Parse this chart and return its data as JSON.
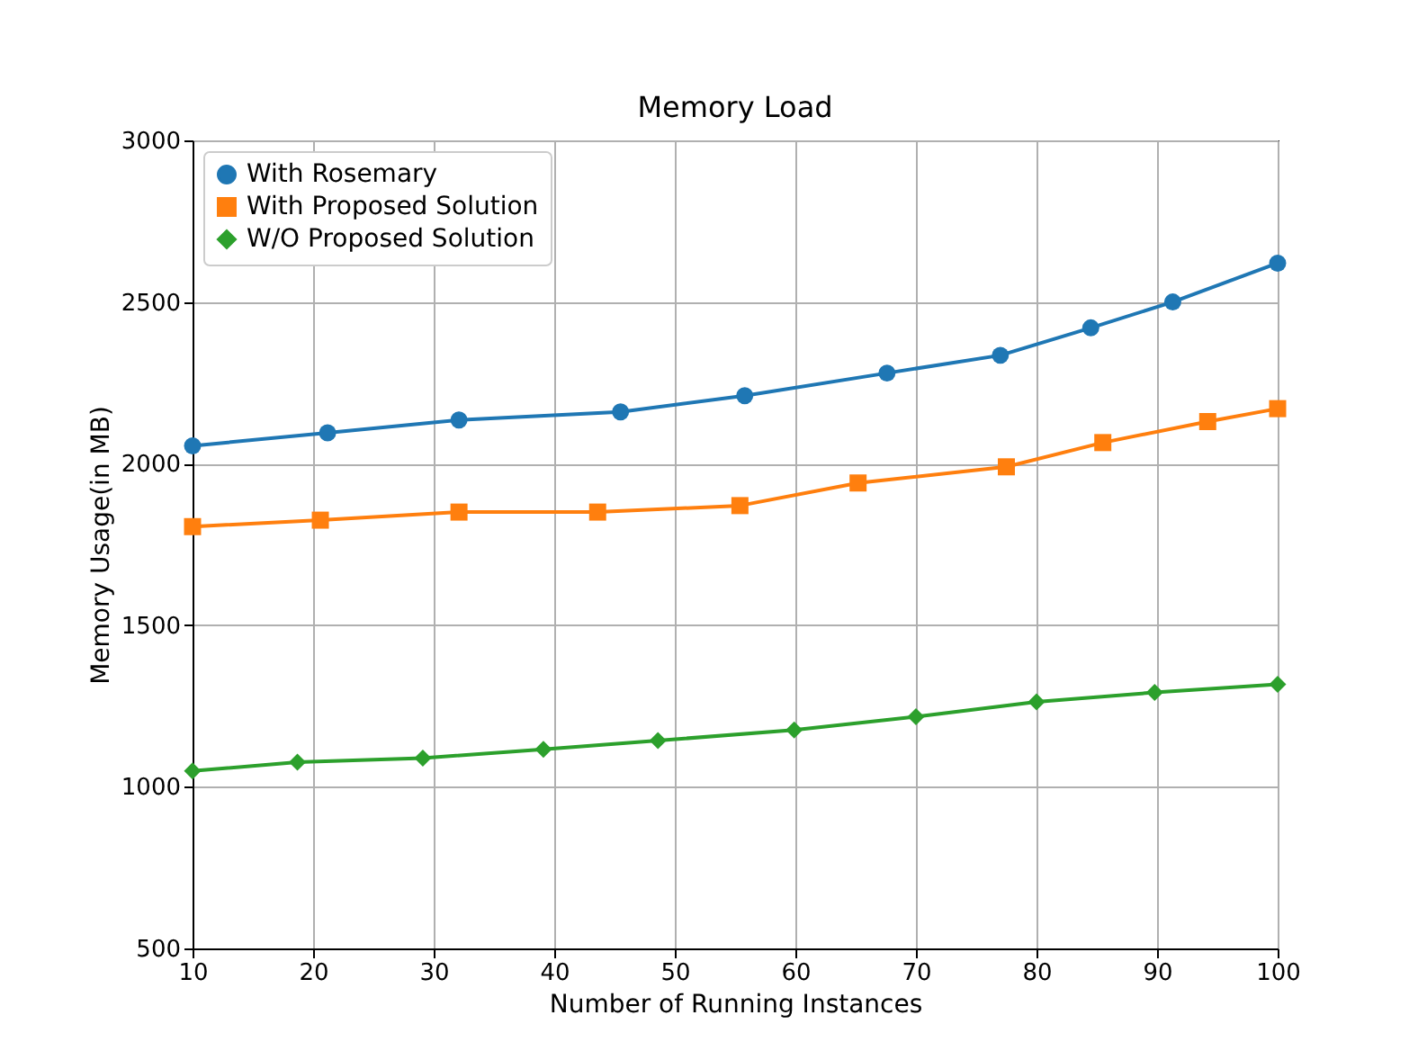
{
  "chart_data": {
    "type": "line",
    "title": "Memory Load",
    "xlabel": "Number of Running Instances",
    "ylabel": "Memory Usage(in MB)",
    "xlim": [
      10,
      100
    ],
    "xticks": [
      10,
      20,
      30,
      40,
      50,
      60,
      70,
      80,
      90,
      100
    ],
    "ylim": [
      500,
      3000
    ],
    "yticks": [
      500,
      1000,
      1500,
      2000,
      2500,
      3000
    ],
    "grid": true,
    "legend": "top left",
    "line_style": "solid",
    "series": [
      {
        "name": "With Rosemary",
        "color": "#1f77b4",
        "marker": "circle",
        "x": [
          10,
          21.2,
          32.1,
          45.5,
          55.8,
          67.6,
          77,
          84.5,
          91.3,
          100
        ],
        "values": [
          2055,
          2095,
          2135,
          2160,
          2210,
          2280,
          2335,
          2420,
          2500,
          2620
        ]
      },
      {
        "name": "With Proposed Solution",
        "color": "#ff7f0e",
        "marker": "square",
        "x": [
          10,
          20.6,
          32.1,
          43.6,
          55.4,
          65.2,
          77.5,
          85.5,
          94.2,
          100
        ],
        "values": [
          1805,
          1825,
          1850,
          1850,
          1870,
          1940,
          1990,
          2065,
          2130,
          2170
        ]
      },
      {
        "name": "W/O Proposed Solution",
        "color": "#2ca02c",
        "marker": "diamond",
        "x": [
          10,
          18.7,
          29.1,
          39.1,
          48.6,
          59.9,
          70,
          80,
          89.8,
          100
        ],
        "values": [
          1049,
          1076,
          1089,
          1116,
          1143,
          1176,
          1217,
          1263,
          1292,
          1317
        ]
      }
    ]
  }
}
